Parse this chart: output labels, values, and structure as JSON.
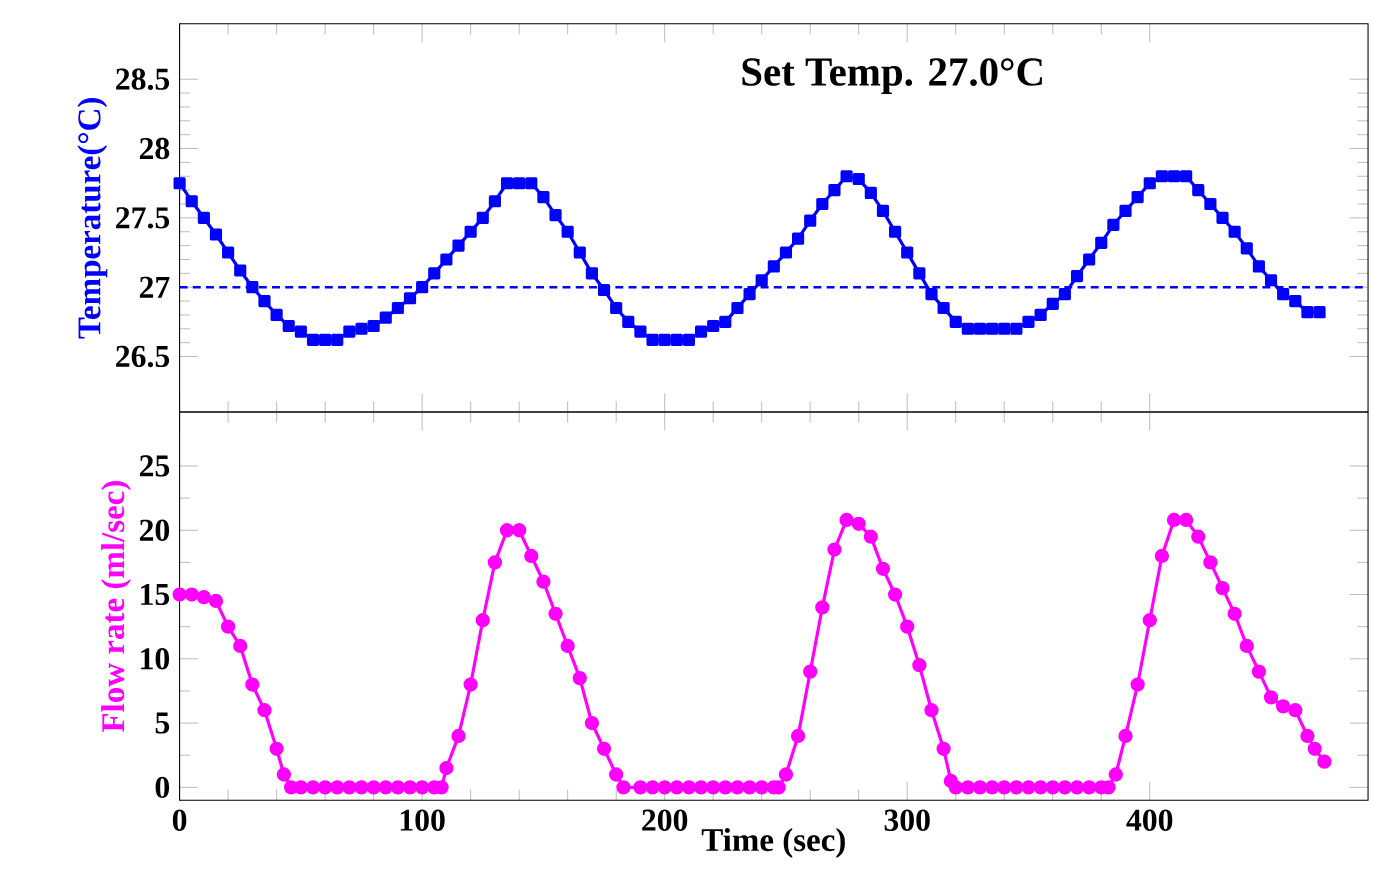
{
  "chart_data": [
    {
      "type": "line",
      "ylabel": "Temperature(°C)",
      "annotations": [
        "Set Temp. 27.0°C"
      ],
      "xlim": [
        0,
        490
      ],
      "xticks": [
        0,
        100,
        200,
        300,
        400
      ],
      "ylim": [
        26.1,
        28.9
      ],
      "yticks": [
        26.5,
        27,
        27.5,
        28,
        28.5
      ],
      "tick_labels": "y",
      "marker": "square",
      "line_style": "solid",
      "ref_lines": [
        {
          "axis": "y",
          "value": 27,
          "color": "#0000ff",
          "line_style": "dashed"
        }
      ],
      "series": [
        {
          "color": "#0000ff",
          "x": [
            0,
            5,
            10,
            15,
            20,
            25,
            30,
            35,
            40,
            45,
            50,
            55,
            60,
            65,
            70,
            75,
            80,
            85,
            90,
            95,
            100,
            105,
            110,
            115,
            120,
            125,
            130,
            135,
            140,
            145,
            150,
            155,
            160,
            165,
            170,
            175,
            180,
            185,
            190,
            195,
            200,
            205,
            210,
            215,
            220,
            225,
            230,
            235,
            240,
            245,
            250,
            255,
            260,
            265,
            270,
            275,
            280,
            285,
            290,
            295,
            300,
            305,
            310,
            315,
            320,
            325,
            330,
            335,
            340,
            345,
            350,
            355,
            360,
            365,
            370,
            375,
            380,
            385,
            390,
            395,
            400,
            405,
            410,
            415,
            420,
            425,
            430,
            435,
            440,
            445,
            450,
            455,
            460,
            465,
            470
          ],
          "values": [
            27.75,
            27.62,
            27.5,
            27.38,
            27.25,
            27.12,
            27.0,
            26.9,
            26.8,
            26.72,
            26.68,
            26.62,
            26.62,
            26.62,
            26.68,
            26.7,
            26.72,
            26.78,
            26.85,
            26.92,
            27.0,
            27.1,
            27.2,
            27.3,
            27.4,
            27.5,
            27.62,
            27.75,
            27.75,
            27.75,
            27.65,
            27.52,
            27.4,
            27.25,
            27.1,
            26.98,
            26.85,
            26.75,
            26.68,
            26.62,
            26.62,
            26.62,
            26.62,
            26.68,
            26.72,
            26.75,
            26.85,
            26.95,
            27.05,
            27.15,
            27.25,
            27.35,
            27.48,
            27.6,
            27.7,
            27.8,
            27.78,
            27.68,
            27.55,
            27.4,
            27.25,
            27.1,
            26.95,
            26.85,
            26.75,
            26.7,
            26.7,
            26.7,
            26.7,
            26.7,
            26.75,
            26.8,
            26.88,
            26.95,
            27.08,
            27.2,
            27.32,
            27.45,
            27.55,
            27.65,
            27.75,
            27.8,
            27.8,
            27.8,
            27.7,
            27.6,
            27.5,
            27.4,
            27.28,
            27.15,
            27.05,
            26.95,
            26.9,
            26.82,
            26.82
          ]
        }
      ]
    },
    {
      "type": "line",
      "ylabel": "Flow rate (ml/sec)",
      "xlabel": "Time (sec)",
      "xlim": [
        0,
        490
      ],
      "xticks": [
        0,
        100,
        200,
        300,
        400
      ],
      "ylim": [
        -1,
        29.2
      ],
      "yticks": [
        0,
        5,
        10,
        15,
        20,
        25
      ],
      "marker": "circle",
      "line_style": "solid",
      "series": [
        {
          "color": "#ff00ff",
          "x": [
            0,
            5,
            10,
            15,
            20,
            25,
            30,
            35,
            40,
            43,
            46,
            50,
            55,
            60,
            65,
            70,
            75,
            80,
            85,
            90,
            95,
            100,
            105,
            108,
            110,
            115,
            120,
            125,
            130,
            135,
            140,
            145,
            150,
            155,
            160,
            165,
            170,
            175,
            180,
            183,
            190,
            195,
            200,
            205,
            210,
            215,
            220,
            225,
            230,
            235,
            240,
            245,
            247,
            250,
            255,
            260,
            265,
            270,
            275,
            280,
            285,
            290,
            295,
            300,
            305,
            310,
            315,
            318,
            320,
            325,
            330,
            335,
            340,
            345,
            350,
            355,
            360,
            365,
            370,
            375,
            380,
            383,
            386,
            390,
            395,
            400,
            405,
            410,
            415,
            420,
            425,
            430,
            435,
            440,
            445,
            450,
            455,
            460,
            465,
            468,
            472
          ],
          "values": [
            15,
            15,
            14.8,
            14.5,
            12.5,
            11,
            8,
            6,
            3,
            1,
            0,
            0,
            0,
            0,
            0,
            0,
            0,
            0,
            0,
            0,
            0,
            0,
            0,
            0,
            1.5,
            4,
            8,
            13,
            17.5,
            20,
            20,
            18,
            16,
            13.5,
            11,
            8.5,
            5,
            3,
            1,
            0,
            0,
            0,
            0,
            0,
            0,
            0,
            0,
            0,
            0,
            0,
            0,
            0,
            0,
            1,
            4,
            9,
            14,
            18.5,
            20.8,
            20.5,
            19.5,
            17,
            15,
            12.5,
            9.5,
            6,
            3,
            0.5,
            0,
            0,
            0,
            0,
            0,
            0,
            0,
            0,
            0,
            0,
            0,
            0,
            0,
            0,
            1,
            4,
            8,
            13,
            18,
            20.8,
            20.8,
            19.5,
            17.5,
            15.5,
            13.5,
            11,
            9,
            7,
            6.3,
            6,
            4,
            3,
            2
          ]
        }
      ]
    }
  ]
}
